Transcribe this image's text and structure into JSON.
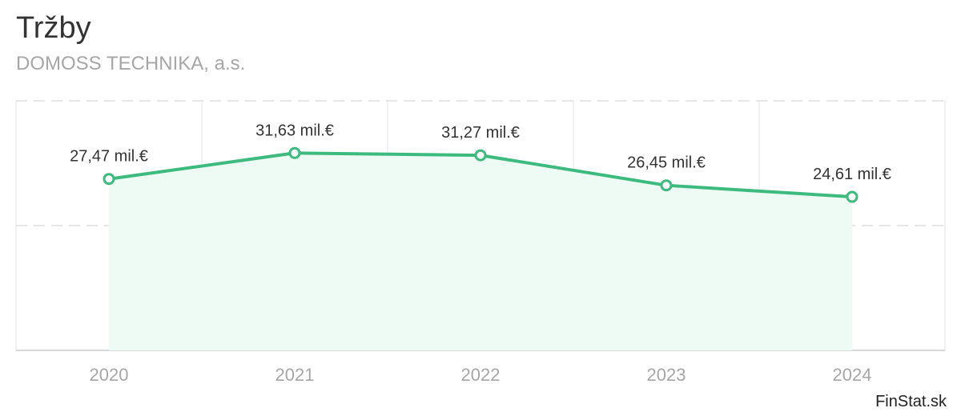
{
  "title": "Tržby",
  "subtitle": "DOMOSS TECHNIKA, a.s.",
  "credit": "FinStat.sk",
  "colors": {
    "line": "#3dbb7e",
    "area": "#eefaf4",
    "grid": "#dddddd",
    "axis_text": "#a6a6a6"
  },
  "chart_data": {
    "type": "area",
    "title": "Tržby",
    "subtitle": "DOMOSS TECHNIKA, a.s.",
    "categories": [
      "2020",
      "2021",
      "2022",
      "2023",
      "2024"
    ],
    "series": [
      {
        "values": [
          27.47,
          31.63,
          31.27,
          26.45,
          24.61
        ],
        "labels": [
          "27,47 mil.€",
          "31,63 mil.€",
          "31,27 mil.€",
          "26,45 mil.€",
          "24,61 mil.€"
        ]
      }
    ],
    "ylim": [
      0,
      40
    ],
    "grid": true,
    "legend": "none"
  }
}
